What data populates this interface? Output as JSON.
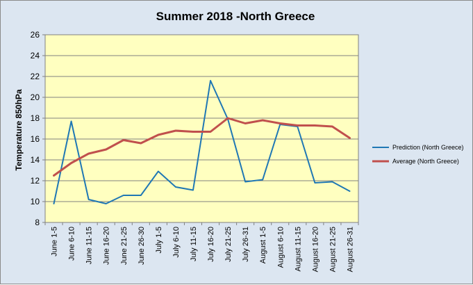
{
  "chart_data": {
    "type": "line",
    "title": "Summer 2018 -North Greece",
    "xlabel": "",
    "ylabel": "Temperature 850hPa",
    "ylim": [
      8,
      26
    ],
    "yticks": [
      8,
      10,
      12,
      14,
      16,
      18,
      20,
      22,
      24,
      26
    ],
    "grid": true,
    "legend_position": "right",
    "categories": [
      "June 1-5",
      "June 6-10",
      "June 11-15",
      "June 16-20",
      "June 21-25",
      "June 26-30",
      "July 1-5",
      "July 6-10",
      "July 11-15",
      "July 16-20",
      "July 21-25",
      "July 26-31",
      "August 1-5",
      "August 6-10",
      "August 11-15",
      "August 16-20",
      "August 21-25",
      "August 26-31"
    ],
    "series": [
      {
        "name": "Prediction (North Greece)",
        "color": "#1f77b4",
        "values": [
          9.8,
          17.7,
          10.2,
          9.8,
          10.6,
          10.6,
          12.9,
          11.4,
          11.1,
          21.6,
          17.9,
          11.9,
          12.1,
          17.4,
          17.2,
          11.8,
          11.9,
          11.0
        ]
      },
      {
        "name": "Average (North Greece)",
        "color": "#c0504d",
        "values": [
          12.5,
          13.7,
          14.6,
          15.0,
          15.9,
          15.6,
          16.4,
          16.8,
          16.7,
          16.7,
          18.0,
          17.5,
          17.8,
          17.5,
          17.3,
          17.3,
          17.2,
          16.1
        ]
      }
    ],
    "plot_background": "#ffffc0",
    "frame_background": "#dce6f1"
  }
}
